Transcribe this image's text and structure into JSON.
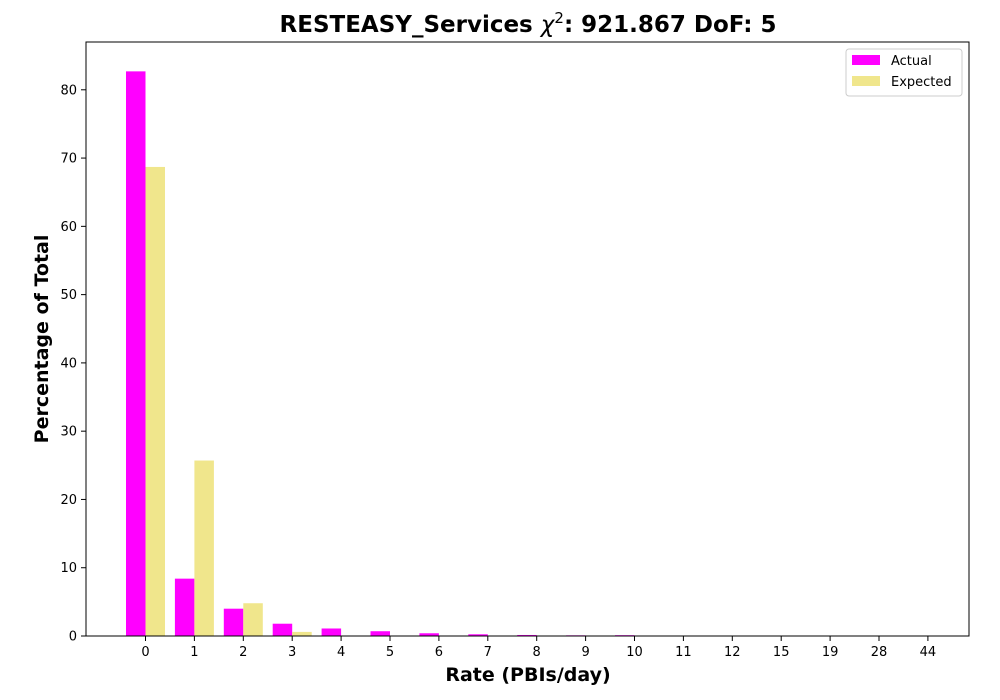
{
  "chart_data": {
    "type": "bar",
    "title": {
      "prefix": "RESTEASY_Services ",
      "chi_symbol": "χ",
      "chi_exponent": "2",
      "suffix": ": 921.867 DoF: 5"
    },
    "xlabel": "Rate (PBIs/day)",
    "ylabel": "Percentage of Total",
    "categories": [
      "0",
      "1",
      "2",
      "3",
      "4",
      "5",
      "6",
      "7",
      "8",
      "9",
      "10",
      "11",
      "12",
      "15",
      "19",
      "28",
      "44"
    ],
    "series": [
      {
        "name": "Actual",
        "color": "#ff00ff",
        "values": [
          82.7,
          8.4,
          4.0,
          1.8,
          1.1,
          0.7,
          0.4,
          0.25,
          0.15,
          0.1,
          0.12,
          0.05,
          0.05,
          0.03,
          0.03,
          0.02,
          0.02
        ]
      },
      {
        "name": "Expected",
        "color": "#f0e68c",
        "values": [
          68.7,
          25.7,
          4.8,
          0.6,
          0.05,
          0.0,
          0.0,
          0.0,
          0.0,
          0.0,
          0.0,
          0.0,
          0.0,
          0.0,
          0.0,
          0.0,
          0.0
        ]
      }
    ],
    "ylim": [
      0,
      87
    ],
    "yticks": [
      0,
      10,
      20,
      30,
      40,
      50,
      60,
      70,
      80
    ],
    "grid": false,
    "legend_position": "top-right"
  }
}
